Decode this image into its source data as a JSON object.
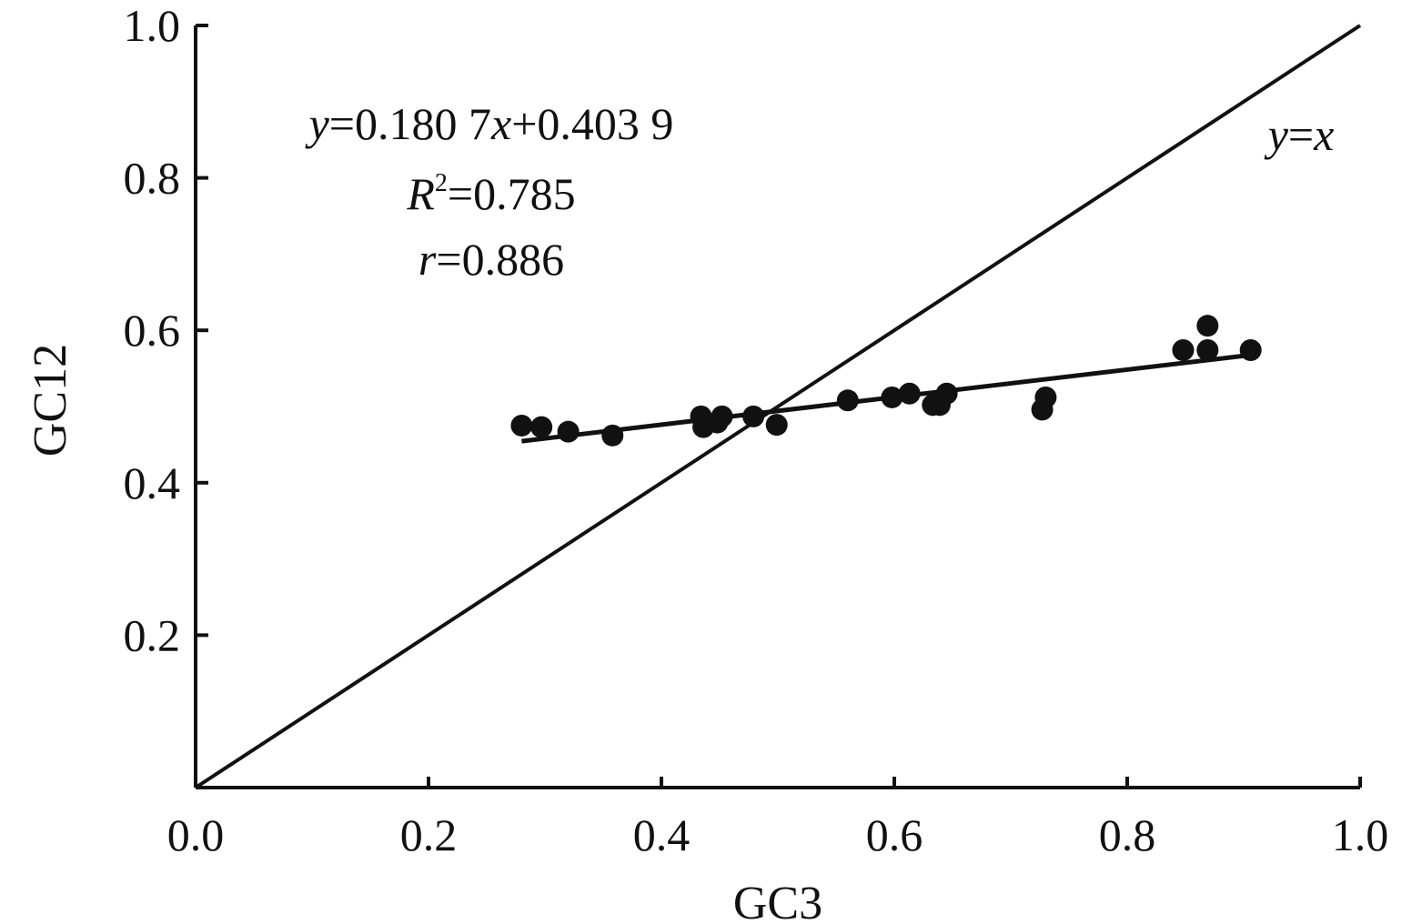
{
  "chart_data": {
    "type": "scatter",
    "title": "",
    "xlabel": "GC3",
    "ylabel": "GC12",
    "xlim": [
      0,
      1.0
    ],
    "ylim": [
      0,
      1.0
    ],
    "grid": false,
    "xticks": [
      "0.0",
      "0.2",
      "0.4",
      "0.6",
      "0.8",
      "1.0"
    ],
    "xtick_values": [
      0,
      0.2,
      0.4,
      0.6,
      0.8,
      1.0
    ],
    "yticks": [
      "0.2",
      "0.4",
      "0.6",
      "0.8",
      "1.0"
    ],
    "ytick_values": [
      0.2,
      0.4,
      0.6,
      0.8,
      1.0
    ],
    "points": [
      [
        0.28,
        0.475
      ],
      [
        0.297,
        0.473
      ],
      [
        0.32,
        0.467
      ],
      [
        0.358,
        0.462
      ],
      [
        0.434,
        0.487
      ],
      [
        0.436,
        0.473
      ],
      [
        0.448,
        0.479
      ],
      [
        0.452,
        0.487
      ],
      [
        0.479,
        0.487
      ],
      [
        0.499,
        0.476
      ],
      [
        0.56,
        0.508
      ],
      [
        0.598,
        0.512
      ],
      [
        0.613,
        0.517
      ],
      [
        0.633,
        0.502
      ],
      [
        0.639,
        0.502
      ],
      [
        0.645,
        0.517
      ],
      [
        0.727,
        0.496
      ],
      [
        0.73,
        0.512
      ],
      [
        0.848,
        0.574
      ],
      [
        0.869,
        0.606
      ],
      [
        0.869,
        0.574
      ],
      [
        0.906,
        0.574
      ]
    ],
    "fit_line": {
      "slope": 0.1807,
      "intercept": 0.4039,
      "x_range": [
        0.28,
        0.906
      ]
    },
    "reference_line": {
      "label_var1": "y",
      "label_eq": "=",
      "label_var2": "x",
      "slope": 1,
      "intercept": 0
    },
    "annotations": {
      "equation": {
        "y": "y",
        "part1": "=0.180 7",
        "x": "x",
        "part2": "+0.403 9"
      },
      "r2": {
        "R": "R",
        "sup": "2",
        "value": "=0.785"
      },
      "r": {
        "r": "r",
        "value": "=0.886"
      }
    },
    "marker_color": "#111111"
  }
}
